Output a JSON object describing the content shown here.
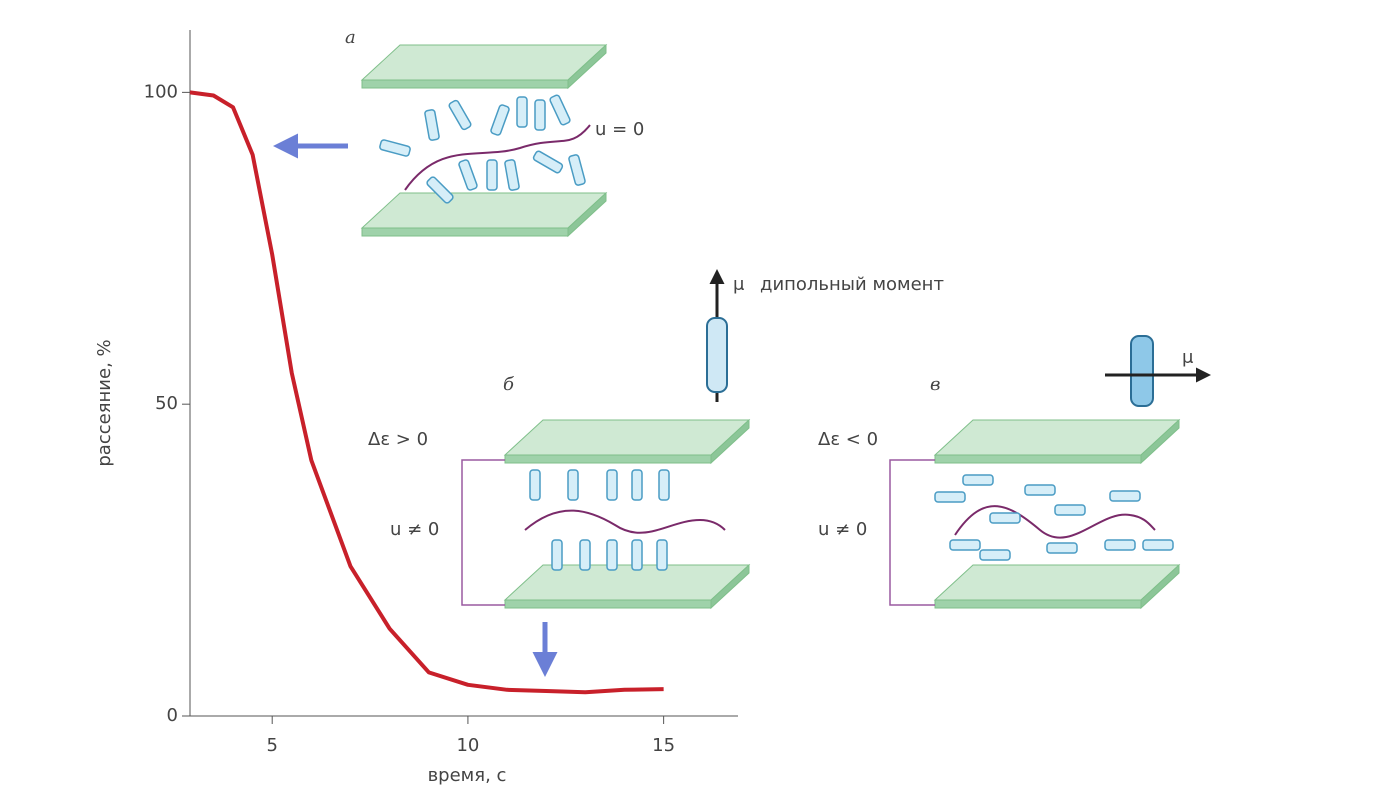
{
  "chart_data": {
    "type": "line",
    "x_label": "время, с",
    "y_label": "рассеяние, %",
    "x": [
      2.9,
      3.5,
      4,
      4.5,
      5,
      5.5,
      6,
      7,
      8,
      9,
      10,
      11,
      12,
      13,
      14,
      15
    ],
    "values": [
      100,
      99.5,
      97.6,
      90,
      74,
      55,
      41,
      24,
      14,
      7,
      5,
      4.2,
      4,
      3.8,
      4.2,
      4.3
    ],
    "color": "#c8202a",
    "xlim": [
      2.9,
      16.9
    ],
    "xticks": [
      5,
      10,
      15
    ],
    "ylim": [
      0,
      110
    ],
    "yticks": [
      0,
      50,
      100
    ],
    "annotations": [
      "а",
      "u = 0",
      "μ",
      "дипольный момент",
      "б",
      "Δε > 0",
      "u ≠ 0",
      "в",
      "Δε < 0",
      "u ≠ 0",
      "μ"
    ]
  }
}
